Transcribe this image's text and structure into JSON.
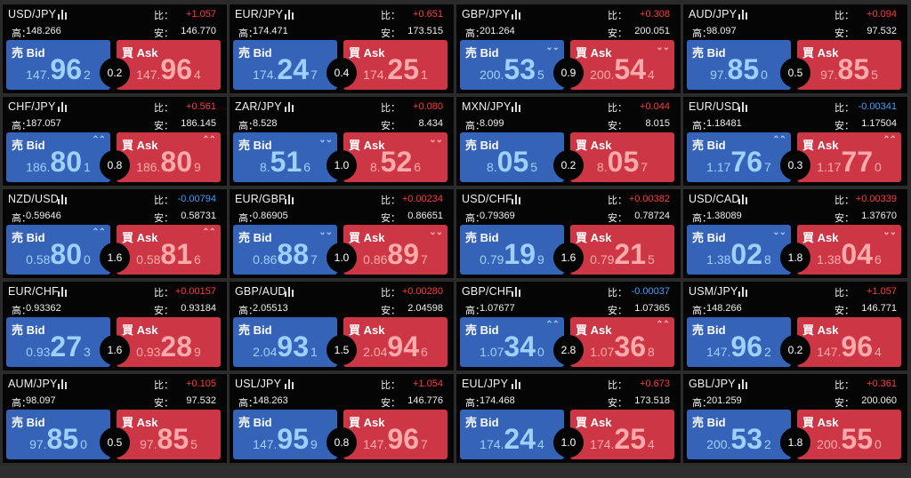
{
  "labels": {
    "ratio": "比：",
    "high": "高：",
    "low": "安：",
    "bid": "売 Bid",
    "ask": "買 Ask"
  },
  "colors": {
    "bid_bg": "#3463b8",
    "ask_bg": "#cc3645",
    "up": "#ff3b3b",
    "down": "#3aa0ff"
  },
  "panels": [
    {
      "pair": "USD/JPY",
      "ratio": "+1.057",
      "dir": "up",
      "high": "148.266",
      "low": "146.770",
      "spread": "0.2",
      "bid": {
        "pre": "147.",
        "big": "96",
        "small": "2",
        "arrow": ""
      },
      "ask": {
        "pre": "147.",
        "big": "96",
        "small": "4",
        "arrow": ""
      }
    },
    {
      "pair": "EUR/JPY",
      "ratio": "+0.651",
      "dir": "up",
      "high": "174.471",
      "low": "173.515",
      "spread": "0.4",
      "bid": {
        "pre": "174.",
        "big": "24",
        "small": "7",
        "arrow": ""
      },
      "ask": {
        "pre": "174.",
        "big": "25",
        "small": "1",
        "arrow": ""
      }
    },
    {
      "pair": "GBP/JPY",
      "ratio": "+0.308",
      "dir": "up",
      "high": "201.264",
      "low": "200.051",
      "spread": "0.9",
      "bid": {
        "pre": "200.",
        "big": "53",
        "small": "5",
        "arrow": "down"
      },
      "ask": {
        "pre": "200.",
        "big": "54",
        "small": "4",
        "arrow": "down"
      }
    },
    {
      "pair": "AUD/JPY",
      "ratio": "+0.094",
      "dir": "up",
      "high": "98.097",
      "low": "97.532",
      "spread": "0.5",
      "bid": {
        "pre": "97.",
        "big": "85",
        "small": "0",
        "arrow": ""
      },
      "ask": {
        "pre": "97.",
        "big": "85",
        "small": "5",
        "arrow": ""
      }
    },
    {
      "pair": "CHF/JPY",
      "ratio": "+0.561",
      "dir": "up",
      "high": "187.057",
      "low": "186.145",
      "spread": "0.8",
      "bid": {
        "pre": "186.",
        "big": "80",
        "small": "1",
        "arrow": "up"
      },
      "ask": {
        "pre": "186.",
        "big": "80",
        "small": "9",
        "arrow": "up"
      }
    },
    {
      "pair": "ZAR/JPY",
      "ratio": "+0.080",
      "dir": "up",
      "high": "8.528",
      "low": "8.434",
      "spread": "1.0",
      "bid": {
        "pre": "8.",
        "big": "51",
        "small": "6",
        "arrow": "down"
      },
      "ask": {
        "pre": "8.",
        "big": "52",
        "small": "6",
        "arrow": "down"
      }
    },
    {
      "pair": "MXN/JPY",
      "ratio": "+0.044",
      "dir": "up",
      "high": "8.099",
      "low": "8.015",
      "spread": "0.2",
      "bid": {
        "pre": "8.",
        "big": "05",
        "small": "5",
        "arrow": ""
      },
      "ask": {
        "pre": "8.",
        "big": "05",
        "small": "7",
        "arrow": ""
      }
    },
    {
      "pair": "EUR/USD",
      "ratio": "-0.00341",
      "dir": "down",
      "high": "1.18481",
      "low": "1.17504",
      "spread": "0.3",
      "bid": {
        "pre": "1.17",
        "big": "76",
        "small": "7",
        "arrow": "up"
      },
      "ask": {
        "pre": "1.17",
        "big": "77",
        "small": "0",
        "arrow": "up"
      }
    },
    {
      "pair": "NZD/USD",
      "ratio": "-0.00794",
      "dir": "down",
      "high": "0.59646",
      "low": "0.58731",
      "spread": "1.6",
      "bid": {
        "pre": "0.58",
        "big": "80",
        "small": "0",
        "arrow": "up"
      },
      "ask": {
        "pre": "0.58",
        "big": "81",
        "small": "6",
        "arrow": "up"
      }
    },
    {
      "pair": "EUR/GBP",
      "ratio": "+0.00234",
      "dir": "up",
      "high": "0.86905",
      "low": "0.86651",
      "spread": "1.0",
      "bid": {
        "pre": "0.86",
        "big": "88",
        "small": "7",
        "arrow": "down"
      },
      "ask": {
        "pre": "0.86",
        "big": "89",
        "small": "7",
        "arrow": "down"
      }
    },
    {
      "pair": "USD/CHF",
      "ratio": "+0.00382",
      "dir": "up",
      "high": "0.79369",
      "low": "0.78724",
      "spread": "1.6",
      "bid": {
        "pre": "0.79",
        "big": "19",
        "small": "9",
        "arrow": ""
      },
      "ask": {
        "pre": "0.79",
        "big": "21",
        "small": "5",
        "arrow": ""
      }
    },
    {
      "pair": "USD/CAD",
      "ratio": "+0.00339",
      "dir": "up",
      "high": "1.38089",
      "low": "1.37670",
      "spread": "1.8",
      "bid": {
        "pre": "1.38",
        "big": "02",
        "small": "8",
        "arrow": "down"
      },
      "ask": {
        "pre": "1.38",
        "big": "04",
        "small": "6",
        "arrow": "down"
      }
    },
    {
      "pair": "EUR/CHF",
      "ratio": "+0.00157",
      "dir": "up",
      "high": "0.93362",
      "low": "0.93184",
      "spread": "1.6",
      "bid": {
        "pre": "0.93",
        "big": "27",
        "small": "3",
        "arrow": ""
      },
      "ask": {
        "pre": "0.93",
        "big": "28",
        "small": "9",
        "arrow": ""
      }
    },
    {
      "pair": "GBP/AUD",
      "ratio": "+0.00280",
      "dir": "up",
      "high": "2.05513",
      "low": "2.04598",
      "spread": "1.5",
      "bid": {
        "pre": "2.04",
        "big": "93",
        "small": "1",
        "arrow": ""
      },
      "ask": {
        "pre": "2.04",
        "big": "94",
        "small": "6",
        "arrow": ""
      }
    },
    {
      "pair": "GBP/CHF",
      "ratio": "-0.00037",
      "dir": "down",
      "high": "1.07677",
      "low": "1.07365",
      "spread": "2.8",
      "bid": {
        "pre": "1.07",
        "big": "34",
        "small": "0",
        "arrow": "up"
      },
      "ask": {
        "pre": "1.07",
        "big": "36",
        "small": "8",
        "arrow": "up"
      }
    },
    {
      "pair": "USM/JPY",
      "ratio": "+1.057",
      "dir": "up",
      "high": "148.266",
      "low": "146.771",
      "spread": "0.2",
      "bid": {
        "pre": "147.",
        "big": "96",
        "small": "2",
        "arrow": ""
      },
      "ask": {
        "pre": "147.",
        "big": "96",
        "small": "4",
        "arrow": ""
      }
    },
    {
      "pair": "AUM/JPY",
      "ratio": "+0.105",
      "dir": "up",
      "high": "98.097",
      "low": "97.532",
      "spread": "0.5",
      "bid": {
        "pre": "97.",
        "big": "85",
        "small": "0",
        "arrow": ""
      },
      "ask": {
        "pre": "97.",
        "big": "85",
        "small": "5",
        "arrow": ""
      }
    },
    {
      "pair": "USL/JPY",
      "ratio": "+1.054",
      "dir": "up",
      "high": "148.263",
      "low": "146.776",
      "spread": "0.8",
      "bid": {
        "pre": "147.",
        "big": "95",
        "small": "9",
        "arrow": ""
      },
      "ask": {
        "pre": "147.",
        "big": "96",
        "small": "7",
        "arrow": ""
      }
    },
    {
      "pair": "EUL/JPY",
      "ratio": "+0.673",
      "dir": "up",
      "high": "174.468",
      "low": "173.518",
      "spread": "1.0",
      "bid": {
        "pre": "174.",
        "big": "24",
        "small": "4",
        "arrow": ""
      },
      "ask": {
        "pre": "174.",
        "big": "25",
        "small": "4",
        "arrow": ""
      }
    },
    {
      "pair": "GBL/JPY",
      "ratio": "+0.361",
      "dir": "up",
      "high": "201.259",
      "low": "200.060",
      "spread": "1.8",
      "bid": {
        "pre": "200.",
        "big": "53",
        "small": "2",
        "arrow": ""
      },
      "ask": {
        "pre": "200.",
        "big": "55",
        "small": "0",
        "arrow": ""
      }
    }
  ]
}
